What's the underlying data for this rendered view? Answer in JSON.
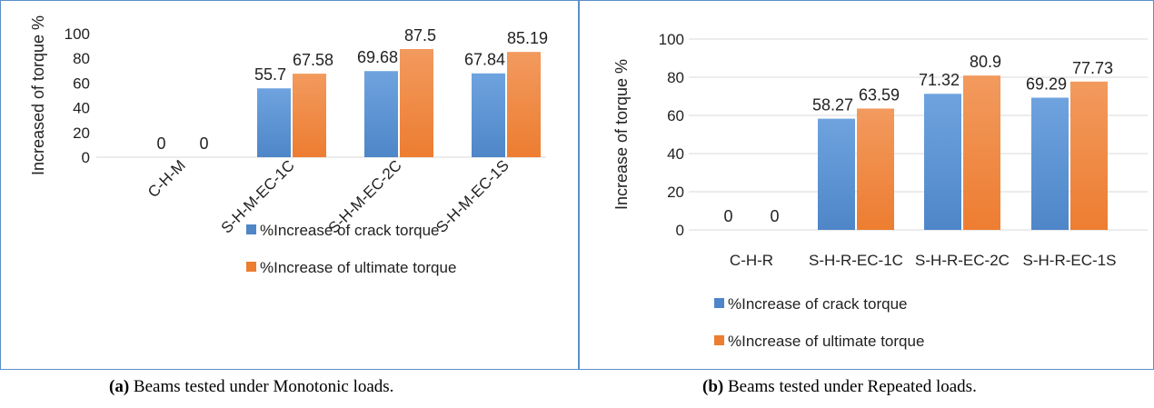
{
  "colors": {
    "crack": "#4e86c8",
    "ultimate": "#ed7d31",
    "crack_light": "#6ea3df",
    "ultimate_light": "#f29a5e"
  },
  "chart_data": [
    {
      "type": "bar",
      "categories": [
        "C-H-M",
        "S-H-M-EC-1C",
        "S-H-M-EC-2C",
        "S-H-M-EC-1S"
      ],
      "series": [
        {
          "name": "%Increase of crack torque",
          "values": [
            0,
            55.7,
            69.68,
            67.84
          ],
          "labels": [
            "0",
            "55.7",
            "69.68",
            "67.84"
          ]
        },
        {
          "name": "%Increase of ultimate torque",
          "values": [
            0,
            67.58,
            87.5,
            85.19
          ],
          "labels": [
            "0",
            "67.58",
            "87.5",
            "85.19"
          ]
        }
      ],
      "ylabel": "Increased of torque %",
      "ylim": [
        0,
        100
      ],
      "yticks": [
        0,
        20,
        40,
        60,
        80,
        100
      ],
      "legend": "bottom",
      "caption_bold": "(a)",
      "caption_text": " Beams tested under Monotonic loads."
    },
    {
      "type": "bar",
      "categories": [
        "C-H-R",
        "S-H-R-EC-1C",
        "S-H-R-EC-2C",
        "S-H-R-EC-1S"
      ],
      "series": [
        {
          "name": "%Increase of crack torque",
          "values": [
            0,
            58.27,
            71.32,
            69.29
          ],
          "labels": [
            "0",
            "58.27",
            "71.32",
            "69.29"
          ]
        },
        {
          "name": "%Increase of ultimate torque",
          "values": [
            0,
            63.59,
            80.9,
            77.73
          ],
          "labels": [
            "0",
            "63.59",
            "80.9",
            "77.73"
          ]
        }
      ],
      "ylabel": "Increase of torque %",
      "ylim": [
        0,
        100
      ],
      "yticks": [
        0,
        20,
        40,
        60,
        80,
        100
      ],
      "legend": "bottom",
      "caption_bold": "(b)",
      "caption_text": " Beams tested under Repeated loads."
    }
  ]
}
